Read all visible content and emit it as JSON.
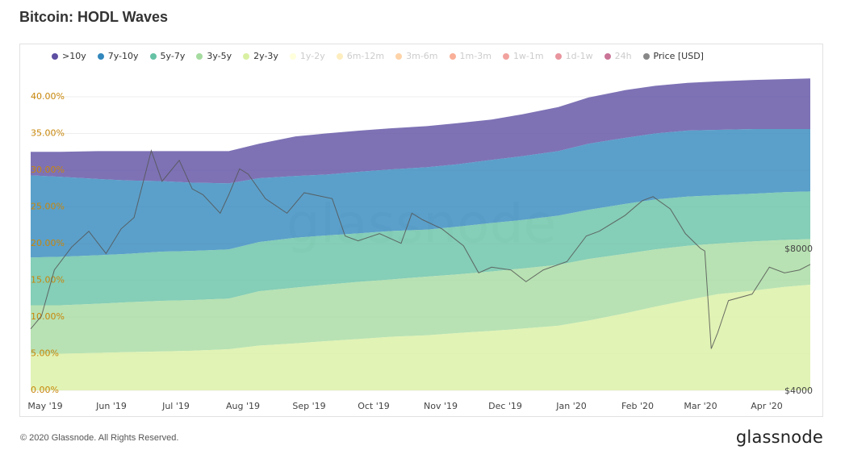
{
  "header": {
    "title": "Bitcoin: HODL Waves"
  },
  "footer": {
    "copyright": "© 2020 Glassnode. All Rights Reserved.",
    "brand": "glassnode"
  },
  "watermark": "glassnode",
  "legend": [
    {
      "label": ">10y",
      "color": "#5e4fa2",
      "active": true
    },
    {
      "label": "7y-10y",
      "color": "#3288bd",
      "active": true
    },
    {
      "label": "5y-7y",
      "color": "#66c2a5",
      "active": true
    },
    {
      "label": "3y-5y",
      "color": "#a6dba0",
      "active": true
    },
    {
      "label": "2y-3y",
      "color": "#d9f0a3",
      "active": true
    },
    {
      "label": "1y-2y",
      "color": "#ffffbf",
      "active": false
    },
    {
      "label": "6m-12m",
      "color": "#fee08b",
      "active": false
    },
    {
      "label": "3m-6m",
      "color": "#fdae61",
      "active": false
    },
    {
      "label": "1m-3m",
      "color": "#f46d43",
      "active": false
    },
    {
      "label": "1w-1m",
      "color": "#e8554e",
      "active": false
    },
    {
      "label": "1d-1w",
      "color": "#d53e4f",
      "active": false
    },
    {
      "label": "24h",
      "color": "#9e0142",
      "active": false
    },
    {
      "label": "Price [USD]",
      "color": "#888888",
      "active": true
    }
  ],
  "chart_data": {
    "type": "area",
    "title": "Bitcoin: HODL Waves",
    "x_ticks": [
      "May '19",
      "Jun '19",
      "Jul '19",
      "Aug '19",
      "Sep '19",
      "Oct '19",
      "Nov '19",
      "Dec '19",
      "Jan '20",
      "Feb '20",
      "Mar '20",
      "Apr '20"
    ],
    "y_ticks": [
      "0.00%",
      "5.00%",
      "10.00%",
      "15.00%",
      "20.00%",
      "25.00%",
      "30.00%",
      "35.00%",
      "40.00%"
    ],
    "ylim": [
      0,
      42
    ],
    "price_ticks": [
      "$8000",
      "$4000"
    ],
    "price_log_range": [
      4000,
      8000
    ],
    "x": [
      "2019-05-01",
      "2019-05-15",
      "2019-06-01",
      "2019-06-15",
      "2019-07-01",
      "2019-07-15",
      "2019-08-01",
      "2019-08-15",
      "2019-09-01",
      "2019-09-15",
      "2019-10-01",
      "2019-10-15",
      "2019-11-01",
      "2019-11-15",
      "2019-12-01",
      "2019-12-15",
      "2020-01-01",
      "2020-01-15",
      "2020-02-01",
      "2020-02-15",
      "2020-03-01",
      "2020-03-15",
      "2020-04-01",
      "2020-04-15",
      "2020-04-27"
    ],
    "series": [
      {
        "name": "2y-3y",
        "color": "#d9f0a3",
        "cumulative": [
          5.0,
          5.0,
          5.1,
          5.2,
          5.3,
          5.4,
          5.6,
          6.1,
          6.4,
          6.7,
          7.0,
          7.3,
          7.5,
          7.8,
          8.1,
          8.4,
          8.8,
          9.5,
          10.5,
          11.4,
          12.3,
          13.1,
          13.6,
          14.1,
          14.4
        ]
      },
      {
        "name": "3y-5y",
        "color": "#a6dba0",
        "cumulative": [
          11.6,
          11.6,
          11.8,
          12.0,
          12.2,
          12.3,
          12.5,
          13.5,
          14.0,
          14.4,
          14.8,
          15.1,
          15.5,
          15.8,
          16.2,
          16.6,
          17.1,
          17.9,
          18.6,
          19.2,
          19.7,
          20.0,
          20.3,
          20.5,
          20.6
        ]
      },
      {
        "name": "5y-7y",
        "color": "#66c2a5",
        "cumulative": [
          18.1,
          18.2,
          18.4,
          18.6,
          18.9,
          19.0,
          19.2,
          20.2,
          20.8,
          21.1,
          21.4,
          21.7,
          21.9,
          22.3,
          22.8,
          23.2,
          23.8,
          24.6,
          25.4,
          26.0,
          26.4,
          26.6,
          26.8,
          27.0,
          27.1
        ]
      },
      {
        "name": "7y-10y",
        "color": "#3288bd",
        "cumulative": [
          29.3,
          29.1,
          28.8,
          28.6,
          28.5,
          28.3,
          28.2,
          28.9,
          29.2,
          29.4,
          29.8,
          30.1,
          30.4,
          30.8,
          31.4,
          31.9,
          32.6,
          33.6,
          34.4,
          35.0,
          35.4,
          35.5,
          35.6,
          35.6,
          35.6
        ]
      },
      {
        "name": ">10y",
        "color": "#5e4fa2",
        "cumulative": [
          32.5,
          32.5,
          32.6,
          32.6,
          32.6,
          32.6,
          32.6,
          33.6,
          34.6,
          35.0,
          35.4,
          35.7,
          36.0,
          36.4,
          36.9,
          37.6,
          38.6,
          39.9,
          40.9,
          41.5,
          41.9,
          42.1,
          42.3,
          42.4,
          42.5
        ]
      }
    ],
    "price": {
      "name": "Price [USD]",
      "x": [
        "2019-05-01",
        "2019-05-06",
        "2019-05-12",
        "2019-05-20",
        "2019-05-28",
        "2019-06-05",
        "2019-06-12",
        "2019-06-18",
        "2019-06-26",
        "2019-07-01",
        "2019-07-09",
        "2019-07-15",
        "2019-07-20",
        "2019-07-28",
        "2019-08-01",
        "2019-08-06",
        "2019-08-10",
        "2019-08-18",
        "2019-08-28",
        "2019-09-05",
        "2019-09-18",
        "2019-09-24",
        "2019-09-30",
        "2019-10-10",
        "2019-10-20",
        "2019-10-25",
        "2019-10-30",
        "2019-11-08",
        "2019-11-18",
        "2019-11-25",
        "2019-12-01",
        "2019-12-10",
        "2019-12-17",
        "2019-12-25",
        "2020-01-05",
        "2020-01-14",
        "2020-01-20",
        "2020-02-01",
        "2020-02-09",
        "2020-02-14",
        "2020-02-22",
        "2020-02-29",
        "2020-03-07",
        "2020-03-09",
        "2020-03-12",
        "2020-03-15",
        "2020-03-20",
        "2020-03-31",
        "2020-04-08",
        "2020-04-15",
        "2020-04-22",
        "2020-04-27"
      ],
      "values": [
        5400,
        5750,
        7200,
        8050,
        8700,
        7800,
        8800,
        9300,
        12900,
        11100,
        12300,
        10700,
        10400,
        9500,
        10400,
        11800,
        11500,
        10200,
        9500,
        10500,
        10200,
        8500,
        8300,
        8600,
        8200,
        9500,
        9200,
        8800,
        8100,
        7100,
        7300,
        7200,
        6800,
        7200,
        7500,
        8500,
        8700,
        9400,
        10100,
        10300,
        9700,
        8600,
        8000,
        7900,
        4900,
        5300,
        6200,
        6400,
        7300,
        7100,
        7200,
        7400
      ]
    }
  }
}
